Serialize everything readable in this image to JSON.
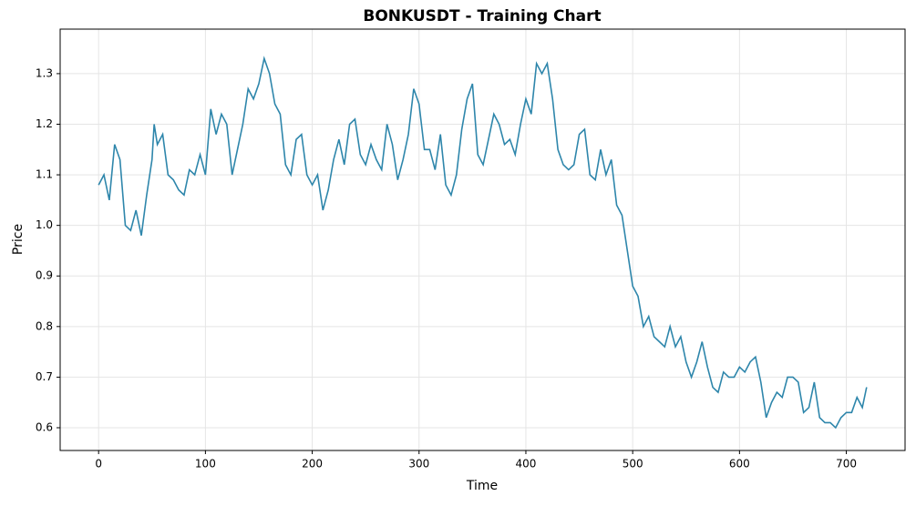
{
  "chart_data": {
    "type": "line",
    "title": "BONKUSDT - Training Chart",
    "x_label": "Time",
    "y_label": "Price",
    "x": [
      0,
      5,
      10,
      15,
      20,
      25,
      30,
      35,
      40,
      45,
      50,
      52,
      55,
      60,
      65,
      70,
      75,
      80,
      85,
      90,
      95,
      100,
      105,
      110,
      115,
      120,
      125,
      130,
      135,
      140,
      145,
      150,
      155,
      160,
      165,
      170,
      175,
      180,
      185,
      190,
      195,
      200,
      205,
      210,
      215,
      220,
      225,
      230,
      235,
      240,
      245,
      250,
      255,
      260,
      265,
      270,
      275,
      280,
      285,
      290,
      295,
      300,
      305,
      310,
      315,
      320,
      325,
      330,
      335,
      340,
      345,
      350,
      355,
      360,
      365,
      370,
      375,
      380,
      385,
      390,
      395,
      400,
      405,
      410,
      415,
      420,
      425,
      430,
      435,
      440,
      445,
      450,
      455,
      460,
      465,
      470,
      475,
      480,
      485,
      490,
      495,
      500,
      505,
      510,
      515,
      520,
      525,
      530,
      535,
      540,
      545,
      550,
      555,
      560,
      565,
      570,
      575,
      580,
      585,
      590,
      595,
      600,
      605,
      610,
      615,
      620,
      625,
      630,
      635,
      640,
      645,
      650,
      655,
      660,
      665,
      670,
      675,
      680,
      685,
      690,
      695,
      700,
      705,
      710,
      715,
      719
    ],
    "series": [
      {
        "name": "BONKUSDT",
        "color": "#2e86ab",
        "values": [
          1.08,
          1.1,
          1.05,
          1.16,
          1.13,
          1.0,
          0.99,
          1.03,
          0.98,
          1.06,
          1.13,
          1.2,
          1.16,
          1.18,
          1.1,
          1.09,
          1.07,
          1.06,
          1.11,
          1.1,
          1.14,
          1.1,
          1.23,
          1.18,
          1.22,
          1.2,
          1.1,
          1.15,
          1.2,
          1.27,
          1.25,
          1.28,
          1.33,
          1.3,
          1.24,
          1.22,
          1.12,
          1.1,
          1.17,
          1.18,
          1.1,
          1.08,
          1.1,
          1.03,
          1.07,
          1.13,
          1.17,
          1.12,
          1.2,
          1.21,
          1.14,
          1.12,
          1.16,
          1.13,
          1.11,
          1.2,
          1.16,
          1.09,
          1.13,
          1.18,
          1.27,
          1.24,
          1.15,
          1.15,
          1.11,
          1.18,
          1.08,
          1.06,
          1.1,
          1.19,
          1.25,
          1.28,
          1.14,
          1.12,
          1.17,
          1.22,
          1.2,
          1.16,
          1.17,
          1.14,
          1.2,
          1.25,
          1.22,
          1.32,
          1.3,
          1.32,
          1.25,
          1.15,
          1.12,
          1.11,
          1.12,
          1.18,
          1.19,
          1.1,
          1.09,
          1.15,
          1.1,
          1.13,
          1.04,
          1.02,
          0.95,
          0.88,
          0.86,
          0.8,
          0.82,
          0.78,
          0.77,
          0.76,
          0.8,
          0.76,
          0.78,
          0.73,
          0.7,
          0.73,
          0.77,
          0.72,
          0.68,
          0.67,
          0.71,
          0.7,
          0.7,
          0.72,
          0.71,
          0.73,
          0.74,
          0.69,
          0.62,
          0.65,
          0.67,
          0.66,
          0.7,
          0.7,
          0.69,
          0.63,
          0.64,
          0.69,
          0.62,
          0.61,
          0.61,
          0.6,
          0.62,
          0.63,
          0.63,
          0.66,
          0.64,
          0.68
        ]
      }
    ],
    "xlim": [
      -36,
      755
    ],
    "ylim": [
      0.555,
      1.388
    ],
    "xticks": [
      0,
      100,
      200,
      300,
      400,
      500,
      600,
      700
    ],
    "yticks": [
      {
        "value": 0.6,
        "label": "0.6"
      },
      {
        "value": 0.7,
        "label": "0.7"
      },
      {
        "value": 0.8,
        "label": "0.8"
      },
      {
        "value": 0.9,
        "label": "0.9"
      },
      {
        "value": 1.0,
        "label": "1.0"
      },
      {
        "value": 1.1,
        "label": "1.1"
      },
      {
        "value": 1.2,
        "label": "1.2"
      },
      {
        "value": 1.3,
        "label": "1.3"
      }
    ],
    "grid": true
  }
}
